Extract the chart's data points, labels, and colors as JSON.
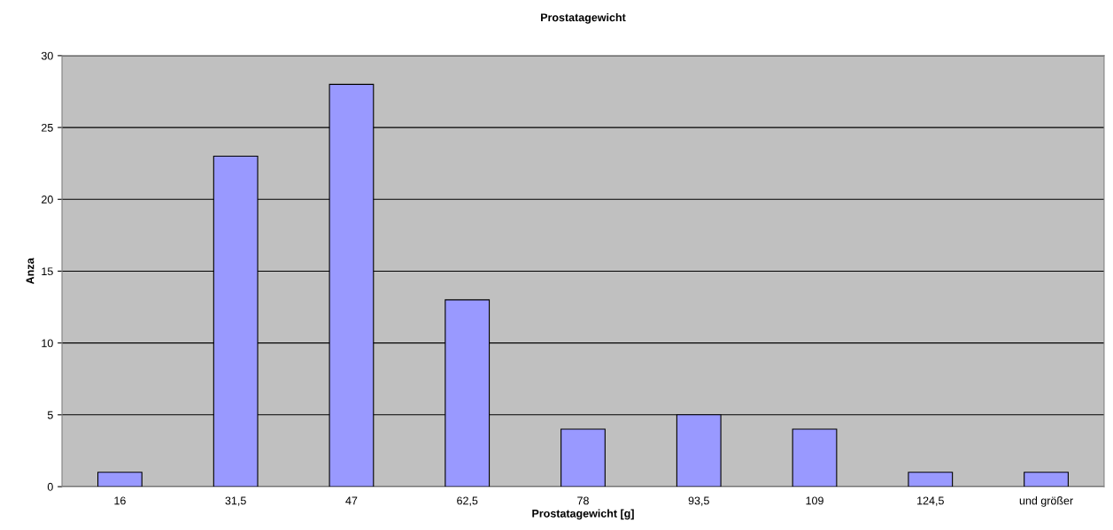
{
  "chart_data": {
    "type": "bar",
    "title": "Prostatagewicht",
    "xlabel": "Prostatagewicht [g]",
    "ylabel": "Anza",
    "categories": [
      "16",
      "31,5",
      "47",
      "62,5",
      "78",
      "93,5",
      "109",
      "124,5",
      "und größer"
    ],
    "values": [
      1,
      23,
      28,
      13,
      4,
      5,
      4,
      1,
      1
    ],
    "color": "#9999ff",
    "ylim": [
      0,
      30
    ],
    "yticks": [
      0,
      5,
      10,
      15,
      20,
      25,
      30
    ],
    "grid": "y",
    "legend": false
  }
}
